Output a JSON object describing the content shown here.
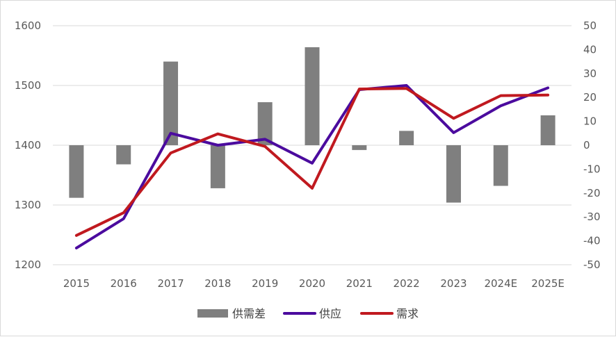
{
  "chart_data": {
    "type": "bar+line",
    "categories": [
      "2015",
      "2016",
      "2017",
      "2018",
      "2019",
      "2020",
      "2021",
      "2022",
      "2023",
      "2024E",
      "2025E"
    ],
    "left_axis": {
      "ylim": [
        1200,
        1600
      ],
      "ticks": [
        1200,
        1300,
        1400,
        1500,
        1600
      ]
    },
    "right_axis": {
      "ylim": [
        -50,
        50
      ],
      "ticks": [
        -50,
        -40,
        -30,
        -20,
        -10,
        0,
        10,
        20,
        30,
        40,
        50
      ]
    },
    "grid": true,
    "legend_position": "bottom",
    "series": [
      {
        "name": "供需差",
        "type": "bar",
        "axis": "right",
        "color": "#7f7f7f",
        "values": [
          -22,
          -8,
          35,
          -18,
          18,
          41,
          -2,
          6,
          -24,
          -17,
          12.5
        ]
      },
      {
        "name": "供应",
        "type": "line",
        "axis": "left",
        "color": "#4b0b9e",
        "values": [
          1228,
          1277,
          1420,
          1400,
          1410,
          1370,
          1493,
          1500,
          1421,
          1466,
          1496
        ]
      },
      {
        "name": "需求",
        "type": "line",
        "axis": "left",
        "color": "#c0191f",
        "values": [
          1249,
          1287,
          1387,
          1419,
          1398,
          1328,
          1494,
          1495,
          1445,
          1483,
          1484
        ]
      }
    ]
  }
}
